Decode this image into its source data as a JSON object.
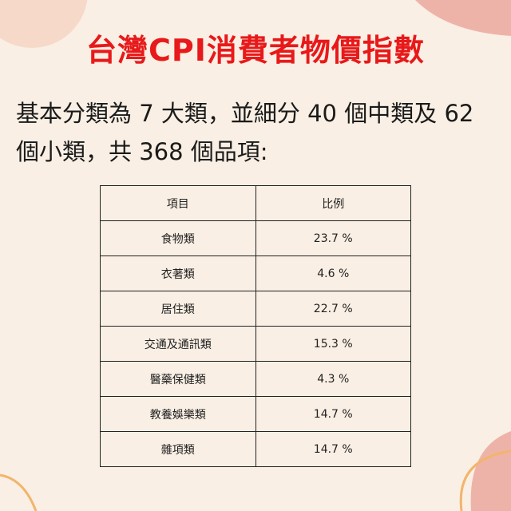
{
  "header": {
    "title": "台灣CPI消費者物價指數"
  },
  "body": {
    "lines": [
      "基本分類為 7 大類，並細分 40 個中類及 62",
      "個小類，共 368 個品項:"
    ]
  },
  "table": {
    "columns": [
      "項目",
      "比例"
    ],
    "rows": [
      [
        "食物類",
        "23.7 %"
      ],
      [
        "衣著類",
        "4.6 %"
      ],
      [
        "居住類",
        "22.7 %"
      ],
      [
        "交通及通訊類",
        "15.3 %"
      ],
      [
        "醫藥保健類",
        "4.3 %"
      ],
      [
        "教養娛樂類",
        "14.7 %"
      ],
      [
        "雜項類",
        "14.7 %"
      ]
    ]
  }
}
